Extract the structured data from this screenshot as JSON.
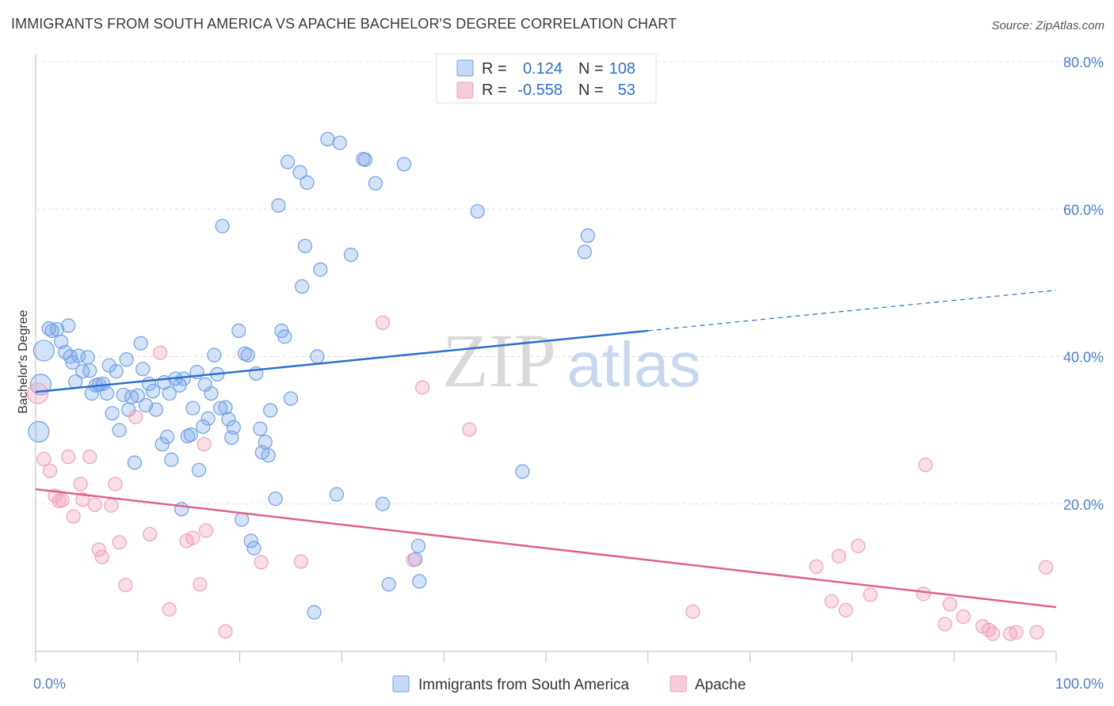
{
  "title": "IMMIGRANTS FROM SOUTH AMERICA VS APACHE BACHELOR'S DEGREE CORRELATION CHART",
  "source": "Source: ZipAtlas.com",
  "watermark": {
    "zip": "ZIP",
    "atlas": "atlas"
  },
  "legend": {
    "rows": [
      {
        "r_label": "R =",
        "r_value": "0.124",
        "n_label": "N =",
        "n_value": "108",
        "color": "#6fa0e8"
      },
      {
        "r_label": "R =",
        "r_value": "-0.558",
        "n_label": "N =",
        "n_value": "53",
        "color": "#f1a0bb"
      }
    ]
  },
  "bottom_legend": [
    {
      "label": "Immigrants from South America",
      "color": "#6fa0e8"
    },
    {
      "label": "Apache",
      "color": "#f1a0bb"
    }
  ],
  "chart_data": {
    "type": "scatter",
    "title": "",
    "ylabel": "Bachelor's Degree",
    "xlabel": "",
    "xlim": [
      0,
      100
    ],
    "ylim": [
      0,
      80
    ],
    "x_tick_labels": [
      "0.0%",
      "100.0%"
    ],
    "y_ticks": [
      20,
      40,
      60,
      80
    ],
    "y_tick_labels": [
      "20.0%",
      "40.0%",
      "60.0%",
      "80.0%"
    ],
    "grid": true,
    "legend_position": "top-center",
    "series": [
      {
        "name": "Immigrants from South America",
        "color": "#6fa0e8",
        "trend": {
          "x0": 0,
          "y0": 35.2,
          "x1": 60,
          "y1": 43.5,
          "dashed_to_x": 100,
          "dashed_to_y": 49.0,
          "line_color": "#2a6fd0"
        },
        "points": [
          [
            0.3,
            29.8
          ],
          [
            0.5,
            36.2
          ],
          [
            0.8,
            40.8
          ],
          [
            1.3,
            43.8
          ],
          [
            1.6,
            43.5
          ],
          [
            2.1,
            43.7
          ],
          [
            2.5,
            42.0
          ],
          [
            2.9,
            40.6
          ],
          [
            3.2,
            44.2
          ],
          [
            3.4,
            40.0
          ],
          [
            3.6,
            39.2
          ],
          [
            3.9,
            36.6
          ],
          [
            4.2,
            40.1
          ],
          [
            4.6,
            38.0
          ],
          [
            5.1,
            39.9
          ],
          [
            5.3,
            38.1
          ],
          [
            5.5,
            35.0
          ],
          [
            5.9,
            36.1
          ],
          [
            6.2,
            36.2
          ],
          [
            6.6,
            36.3
          ],
          [
            7.0,
            35.0
          ],
          [
            7.2,
            38.8
          ],
          [
            7.5,
            32.3
          ],
          [
            7.9,
            38.0
          ],
          [
            8.2,
            30.0
          ],
          [
            8.6,
            34.8
          ],
          [
            8.9,
            39.6
          ],
          [
            9.1,
            32.8
          ],
          [
            9.4,
            34.5
          ],
          [
            9.7,
            25.6
          ],
          [
            10.0,
            34.7
          ],
          [
            10.3,
            41.8
          ],
          [
            10.5,
            38.3
          ],
          [
            10.8,
            33.4
          ],
          [
            11.1,
            36.3
          ],
          [
            11.5,
            35.3
          ],
          [
            11.8,
            32.8
          ],
          [
            12.4,
            28.1
          ],
          [
            12.6,
            36.5
          ],
          [
            12.9,
            29.1
          ],
          [
            13.1,
            35.0
          ],
          [
            13.3,
            26.0
          ],
          [
            13.7,
            37.0
          ],
          [
            14.1,
            36.1
          ],
          [
            14.3,
            19.3
          ],
          [
            14.5,
            37.0
          ],
          [
            14.9,
            29.2
          ],
          [
            15.2,
            29.4
          ],
          [
            15.4,
            33.0
          ],
          [
            15.8,
            37.9
          ],
          [
            16.0,
            24.6
          ],
          [
            16.4,
            30.5
          ],
          [
            16.6,
            36.2
          ],
          [
            16.9,
            31.6
          ],
          [
            17.2,
            35.0
          ],
          [
            17.5,
            40.2
          ],
          [
            17.8,
            37.6
          ],
          [
            18.1,
            33.0
          ],
          [
            18.3,
            57.7
          ],
          [
            18.6,
            33.1
          ],
          [
            18.9,
            31.5
          ],
          [
            19.2,
            29.0
          ],
          [
            19.4,
            30.4
          ],
          [
            19.9,
            43.5
          ],
          [
            20.2,
            17.9
          ],
          [
            20.5,
            40.4
          ],
          [
            20.8,
            40.2
          ],
          [
            21.1,
            15.0
          ],
          [
            21.4,
            14.0
          ],
          [
            21.6,
            37.7
          ],
          [
            22.0,
            30.2
          ],
          [
            22.2,
            27.0
          ],
          [
            22.5,
            28.4
          ],
          [
            22.8,
            26.6
          ],
          [
            23.0,
            32.7
          ],
          [
            23.5,
            20.7
          ],
          [
            23.8,
            60.5
          ],
          [
            24.1,
            43.5
          ],
          [
            24.4,
            42.7
          ],
          [
            24.7,
            66.4
          ],
          [
            25.0,
            34.3
          ],
          [
            25.9,
            65.0
          ],
          [
            26.1,
            49.5
          ],
          [
            26.4,
            55.0
          ],
          [
            26.6,
            63.6
          ],
          [
            27.3,
            5.3
          ],
          [
            27.6,
            40.0
          ],
          [
            27.9,
            51.8
          ],
          [
            28.6,
            69.5
          ],
          [
            29.5,
            21.3
          ],
          [
            29.8,
            69.0
          ],
          [
            30.9,
            53.8
          ],
          [
            32.1,
            66.8
          ],
          [
            32.3,
            66.7
          ],
          [
            33.3,
            63.5
          ],
          [
            34.0,
            20.0
          ],
          [
            34.6,
            9.1
          ],
          [
            36.1,
            66.1
          ],
          [
            37.2,
            12.5
          ],
          [
            37.5,
            14.3
          ],
          [
            37.6,
            9.5
          ],
          [
            43.3,
            59.7
          ],
          [
            47.7,
            24.4
          ],
          [
            53.8,
            54.2
          ],
          [
            54.1,
            56.4
          ]
        ]
      },
      {
        "name": "Apache",
        "color": "#f1a0bb",
        "trend": {
          "x0": 0,
          "y0": 22.0,
          "x1": 100,
          "y1": 6.0,
          "line_color": "#e0608d"
        },
        "points": [
          [
            0.2,
            35.0
          ],
          [
            0.8,
            26.1
          ],
          [
            1.4,
            24.5
          ],
          [
            1.9,
            21.1
          ],
          [
            2.3,
            20.4
          ],
          [
            2.6,
            20.5
          ],
          [
            3.2,
            26.4
          ],
          [
            3.7,
            18.3
          ],
          [
            4.4,
            22.7
          ],
          [
            4.6,
            20.6
          ],
          [
            5.3,
            26.4
          ],
          [
            5.8,
            19.9
          ],
          [
            6.2,
            13.8
          ],
          [
            6.5,
            12.8
          ],
          [
            7.4,
            19.8
          ],
          [
            7.8,
            22.7
          ],
          [
            8.2,
            14.8
          ],
          [
            8.8,
            9.0
          ],
          [
            9.8,
            31.8
          ],
          [
            11.2,
            15.9
          ],
          [
            12.2,
            40.5
          ],
          [
            13.1,
            5.7
          ],
          [
            14.8,
            15.0
          ],
          [
            15.4,
            15.4
          ],
          [
            16.1,
            9.1
          ],
          [
            16.5,
            28.1
          ],
          [
            16.7,
            16.4
          ],
          [
            18.6,
            2.7
          ],
          [
            22.1,
            12.1
          ],
          [
            26.0,
            12.2
          ],
          [
            34.0,
            44.6
          ],
          [
            37.0,
            12.4
          ],
          [
            37.9,
            35.8
          ],
          [
            42.5,
            30.1
          ],
          [
            64.4,
            5.4
          ],
          [
            76.5,
            11.5
          ],
          [
            78.0,
            6.8
          ],
          [
            78.7,
            12.9
          ],
          [
            79.4,
            5.6
          ],
          [
            80.6,
            14.3
          ],
          [
            81.8,
            7.7
          ],
          [
            87.2,
            25.3
          ],
          [
            87.0,
            7.8
          ],
          [
            89.1,
            3.7
          ],
          [
            89.6,
            6.4
          ],
          [
            90.9,
            4.7
          ],
          [
            92.8,
            3.4
          ],
          [
            93.4,
            2.9
          ],
          [
            93.8,
            2.4
          ],
          [
            95.5,
            2.4
          ],
          [
            96.1,
            2.6
          ],
          [
            98.1,
            2.6
          ],
          [
            99.0,
            11.4
          ]
        ]
      }
    ]
  }
}
